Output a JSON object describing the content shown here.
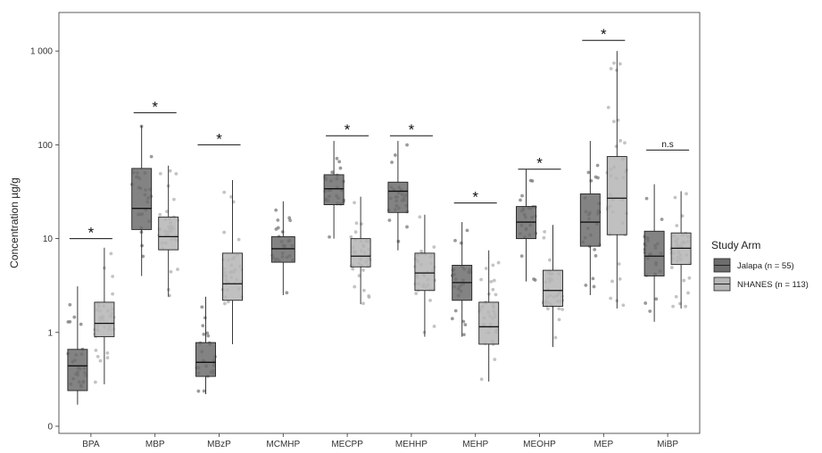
{
  "chart_data": {
    "type": "boxplot",
    "ylabel": "Concentration µg/g",
    "yscale": "log",
    "ylim": [
      0.07,
      2000
    ],
    "yticks": [
      {
        "value": 0.1,
        "label": "0"
      },
      {
        "value": 1,
        "label": "1"
      },
      {
        "value": 10,
        "label": "10"
      },
      {
        "value": 100,
        "label": "100"
      },
      {
        "value": 1000,
        "label": "1 000"
      }
    ],
    "categories": [
      "BPA",
      "MBP",
      "MBzP",
      "MCMHP",
      "MECPP",
      "MEHHP",
      "MEHP",
      "MEOHP",
      "MEP",
      "MiBP"
    ],
    "legend": {
      "title": "Study Arm",
      "position": "right",
      "entries": [
        "Jalapa (n = 55)",
        "NHANES (n = 113)"
      ]
    },
    "colors": {
      "jalapa_fill": "#6d6d6d",
      "nhanes_fill": "#b5b5b5",
      "jalapa_points": "#7a7a7a",
      "nhanes_points": "#b0b0b0",
      "box_line": "#222222"
    },
    "series": [
      {
        "name": "Jalapa (n = 55)",
        "boxes": [
          {
            "category": "BPA",
            "min": 0.17,
            "q1": 0.24,
            "median": 0.44,
            "q3": 0.66,
            "max": 3.1
          },
          {
            "category": "MBP",
            "min": 4.0,
            "q1": 12.5,
            "median": 21.0,
            "q3": 56.0,
            "max": 160
          },
          {
            "category": "MBzP",
            "min": 0.22,
            "q1": 0.34,
            "median": 0.48,
            "q3": 0.78,
            "max": 2.4
          },
          {
            "category": "MCMHP",
            "min": 2.5,
            "q1": 5.6,
            "median": 7.8,
            "q3": 10.5,
            "max": 25
          },
          {
            "category": "MECPP",
            "min": 10.0,
            "q1": 23.0,
            "median": 34.0,
            "q3": 48.0,
            "max": 110
          },
          {
            "category": "MEHHP",
            "min": 7.5,
            "q1": 19.0,
            "median": 32.0,
            "q3": 40.0,
            "max": 110
          },
          {
            "category": "MEHP",
            "min": 0.9,
            "q1": 2.2,
            "median": 3.4,
            "q3": 5.2,
            "max": 15
          },
          {
            "category": "MEOHP",
            "min": 3.5,
            "q1": 10.0,
            "median": 15.0,
            "q3": 22.0,
            "max": 55
          },
          {
            "category": "MEP",
            "min": 2.5,
            "q1": 8.3,
            "median": 15.0,
            "q3": 30.0,
            "max": 110
          },
          {
            "category": "MiBP",
            "min": 1.3,
            "q1": 4.0,
            "median": 6.5,
            "q3": 12.0,
            "max": 38
          }
        ]
      },
      {
        "name": "NHANES (n = 113)",
        "boxes": [
          {
            "category": "BPA",
            "min": 0.28,
            "q1": 0.9,
            "median": 1.25,
            "q3": 2.1,
            "max": 8.0
          },
          {
            "category": "MBP",
            "min": 2.4,
            "q1": 7.6,
            "median": 10.5,
            "q3": 17.0,
            "max": 60
          },
          {
            "category": "MBzP",
            "min": 0.75,
            "q1": 2.2,
            "median": 3.3,
            "q3": 7.0,
            "max": 42
          },
          {
            "category": "MECPP",
            "min": 2.0,
            "q1": 5.0,
            "median": 6.5,
            "q3": 10.0,
            "max": 28
          },
          {
            "category": "MEHHP",
            "min": 0.9,
            "q1": 2.8,
            "median": 4.3,
            "q3": 7.0,
            "max": 18
          },
          {
            "category": "MEHP",
            "min": 0.3,
            "q1": 0.75,
            "median": 1.15,
            "q3": 2.1,
            "max": 7.5
          },
          {
            "category": "MEOHP",
            "min": 0.7,
            "q1": 1.9,
            "median": 2.8,
            "q3": 4.6,
            "max": 14
          },
          {
            "category": "MEP",
            "min": 1.8,
            "q1": 11.0,
            "median": 27.0,
            "q3": 75.0,
            "max": 1000
          },
          {
            "category": "MiBP",
            "min": 1.8,
            "q1": 5.3,
            "median": 7.9,
            "q3": 11.5,
            "max": 32
          }
        ]
      }
    ],
    "annotations": [
      {
        "category": "BPA",
        "text": "*",
        "y": 10
      },
      {
        "category": "MBP",
        "text": "*",
        "y": 220
      },
      {
        "category": "MBzP",
        "text": "*",
        "y": 100
      },
      {
        "category": "MECPP",
        "text": "*",
        "y": 125
      },
      {
        "category": "MEHHP",
        "text": "*",
        "y": 125
      },
      {
        "category": "MEHP",
        "text": "*",
        "y": 24
      },
      {
        "category": "MEOHP",
        "text": "*",
        "y": 55
      },
      {
        "category": "MEP",
        "text": "*",
        "y": 1300
      },
      {
        "category": "MiBP",
        "text": "n.s",
        "y": 88
      }
    ]
  }
}
